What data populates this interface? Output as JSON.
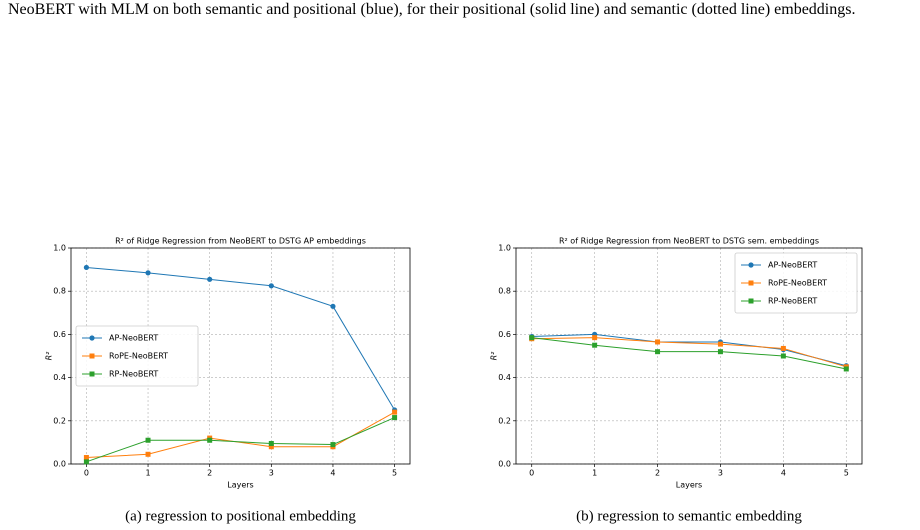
{
  "text": "NeoBERT with MLM on both semantic and positional (blue), for their positional (solid line) and semantic (dotted line) embeddings.",
  "chart_data": [
    {
      "type": "line",
      "title": "R² of Ridge Regression from NeoBERT to DSTG AP embeddings",
      "x_label": "Layers",
      "y_label": "R²",
      "caption": "(a) regression to positional embedding",
      "x": [
        0,
        1,
        2,
        3,
        4,
        5
      ],
      "xlim": [
        -0.25,
        5.25
      ],
      "xticks": [
        0,
        1,
        2,
        3,
        4,
        5
      ],
      "ylim": [
        0,
        1
      ],
      "yticks": [
        {
          "value": 0,
          "label": "0.0"
        },
        0.2,
        0.4,
        0.6,
        0.8,
        {
          "value": 1,
          "label": "1.0"
        }
      ],
      "grid": true,
      "legend": "center left",
      "series": [
        {
          "name": "AP-NeoBERT",
          "color": "#1f77b4",
          "marker": "circle",
          "values": [
            0.91,
            0.885,
            0.855,
            0.825,
            0.73,
            0.25
          ]
        },
        {
          "name": "RoPE-NeoBERT",
          "color": "#ff7f0e",
          "marker": "square",
          "values": [
            0.03,
            0.045,
            0.12,
            0.08,
            0.08,
            0.24
          ]
        },
        {
          "name": "RP-NeoBERT",
          "color": "#2ca02c",
          "marker": "square",
          "values": [
            0.01,
            0.11,
            0.11,
            0.095,
            0.09,
            0.215
          ]
        }
      ]
    },
    {
      "type": "line",
      "title": "R² of Ridge Regression from NeoBERT to DSTG sem. embeddings",
      "x_label": "Layers",
      "y_label": "R²",
      "caption": "(b) regression to semantic embedding",
      "x": [
        0,
        1,
        2,
        3,
        4,
        5
      ],
      "xlim": [
        -0.25,
        5.25
      ],
      "xticks": [
        0,
        1,
        2,
        3,
        4,
        5
      ],
      "ylim": [
        0,
        1
      ],
      "yticks": [
        {
          "value": 0,
          "label": "0.0"
        },
        0.2,
        0.4,
        0.6,
        0.8,
        {
          "value": 1,
          "label": "1.0"
        }
      ],
      "grid": true,
      "legend": "upper right",
      "series": [
        {
          "name": "AP-NeoBERT",
          "color": "#1f77b4",
          "marker": "circle",
          "values": [
            0.59,
            0.6,
            0.565,
            0.565,
            0.53,
            0.455
          ]
        },
        {
          "name": "RoPE-NeoBERT",
          "color": "#ff7f0e",
          "marker": "square",
          "values": [
            0.58,
            0.585,
            0.565,
            0.555,
            0.535,
            0.45
          ]
        },
        {
          "name": "RP-NeoBERT",
          "color": "#2ca02c",
          "marker": "square",
          "values": [
            0.585,
            0.55,
            0.52,
            0.52,
            0.5,
            0.44
          ]
        }
      ]
    }
  ]
}
